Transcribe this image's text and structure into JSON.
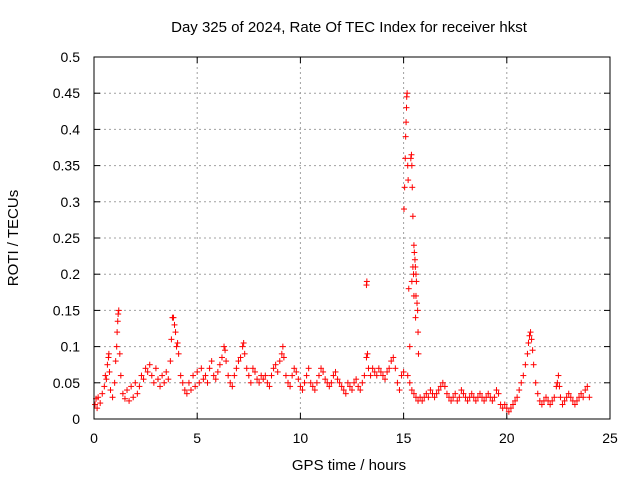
{
  "chart_data": {
    "type": "scatter",
    "title": "Day 325 of 2024, Rate Of TEC Index for receiver hkst",
    "xlabel": "GPS time / hours",
    "ylabel": "ROTI / TECUs",
    "xlim": [
      0,
      25
    ],
    "ylim": [
      0,
      0.5
    ],
    "x_ticks": [
      0,
      5,
      10,
      15,
      20,
      25
    ],
    "x_tick_labels": [
      "0",
      "5",
      "10",
      "15",
      "20",
      "25"
    ],
    "y_ticks": [
      0,
      0.05,
      0.1,
      0.15,
      0.2,
      0.25,
      0.3,
      0.35,
      0.4,
      0.45,
      0.5
    ],
    "y_tick_labels": [
      "0",
      "0.05",
      "0.1",
      "0.15",
      "0.2",
      "0.25",
      "0.3",
      "0.35",
      "0.4",
      "0.45",
      "0.5"
    ],
    "grid": true,
    "marker": "+",
    "color": "#ff0000",
    "series": [
      {
        "name": "ROTI",
        "points": [
          [
            0.05,
            0.02
          ],
          [
            0.1,
            0.028
          ],
          [
            0.15,
            0.015
          ],
          [
            0.2,
            0.03
          ],
          [
            0.3,
            0.022
          ],
          [
            0.4,
            0.035
          ],
          [
            0.5,
            0.045
          ],
          [
            0.55,
            0.06
          ],
          [
            0.6,
            0.055
          ],
          [
            0.65,
            0.075
          ],
          [
            0.7,
            0.085
          ],
          [
            0.72,
            0.09
          ],
          [
            0.75,
            0.065
          ],
          [
            0.8,
            0.04
          ],
          [
            0.9,
            0.03
          ],
          [
            1.0,
            0.05
          ],
          [
            1.05,
            0.08
          ],
          [
            1.1,
            0.1
          ],
          [
            1.12,
            0.12
          ],
          [
            1.15,
            0.135
          ],
          [
            1.17,
            0.145
          ],
          [
            1.2,
            0.15
          ],
          [
            1.25,
            0.09
          ],
          [
            1.3,
            0.06
          ],
          [
            1.4,
            0.035
          ],
          [
            1.5,
            0.028
          ],
          [
            1.6,
            0.04
          ],
          [
            1.7,
            0.025
          ],
          [
            1.8,
            0.045
          ],
          [
            1.9,
            0.03
          ],
          [
            2.0,
            0.05
          ],
          [
            2.1,
            0.035
          ],
          [
            2.2,
            0.045
          ],
          [
            2.3,
            0.06
          ],
          [
            2.4,
            0.055
          ],
          [
            2.5,
            0.07
          ],
          [
            2.6,
            0.065
          ],
          [
            2.7,
            0.075
          ],
          [
            2.8,
            0.06
          ],
          [
            2.9,
            0.05
          ],
          [
            3.0,
            0.07
          ],
          [
            3.1,
            0.055
          ],
          [
            3.2,
            0.045
          ],
          [
            3.3,
            0.06
          ],
          [
            3.4,
            0.05
          ],
          [
            3.5,
            0.065
          ],
          [
            3.6,
            0.055
          ],
          [
            3.7,
            0.08
          ],
          [
            3.75,
            0.11
          ],
          [
            3.8,
            0.14
          ],
          [
            3.85,
            0.14
          ],
          [
            3.9,
            0.13
          ],
          [
            3.95,
            0.12
          ],
          [
            4.0,
            0.1
          ],
          [
            4.05,
            0.105
          ],
          [
            4.1,
            0.09
          ],
          [
            4.2,
            0.06
          ],
          [
            4.3,
            0.05
          ],
          [
            4.4,
            0.04
          ],
          [
            4.5,
            0.035
          ],
          [
            4.6,
            0.05
          ],
          [
            4.7,
            0.04
          ],
          [
            4.8,
            0.06
          ],
          [
            4.9,
            0.045
          ],
          [
            5.0,
            0.065
          ],
          [
            5.1,
            0.05
          ],
          [
            5.2,
            0.07
          ],
          [
            5.3,
            0.055
          ],
          [
            5.4,
            0.06
          ],
          [
            5.5,
            0.05
          ],
          [
            5.6,
            0.07
          ],
          [
            5.7,
            0.08
          ],
          [
            5.8,
            0.06
          ],
          [
            5.9,
            0.055
          ],
          [
            6.0,
            0.065
          ],
          [
            6.1,
            0.075
          ],
          [
            6.2,
            0.085
          ],
          [
            6.3,
            0.1
          ],
          [
            6.35,
            0.095
          ],
          [
            6.4,
            0.08
          ],
          [
            6.5,
            0.06
          ],
          [
            6.6,
            0.05
          ],
          [
            6.7,
            0.045
          ],
          [
            6.8,
            0.06
          ],
          [
            6.9,
            0.07
          ],
          [
            7.0,
            0.08
          ],
          [
            7.1,
            0.085
          ],
          [
            7.2,
            0.1
          ],
          [
            7.25,
            0.105
          ],
          [
            7.3,
            0.09
          ],
          [
            7.4,
            0.07
          ],
          [
            7.5,
            0.06
          ],
          [
            7.6,
            0.05
          ],
          [
            7.7,
            0.07
          ],
          [
            7.8,
            0.065
          ],
          [
            7.9,
            0.055
          ],
          [
            8.0,
            0.05
          ],
          [
            8.1,
            0.06
          ],
          [
            8.2,
            0.055
          ],
          [
            8.3,
            0.06
          ],
          [
            8.4,
            0.05
          ],
          [
            8.5,
            0.045
          ],
          [
            8.6,
            0.06
          ],
          [
            8.7,
            0.07
          ],
          [
            8.8,
            0.075
          ],
          [
            8.9,
            0.065
          ],
          [
            9.0,
            0.08
          ],
          [
            9.1,
            0.09
          ],
          [
            9.15,
            0.1
          ],
          [
            9.2,
            0.085
          ],
          [
            9.3,
            0.06
          ],
          [
            9.4,
            0.05
          ],
          [
            9.5,
            0.045
          ],
          [
            9.6,
            0.06
          ],
          [
            9.7,
            0.07
          ],
          [
            9.8,
            0.065
          ],
          [
            9.9,
            0.055
          ],
          [
            10.0,
            0.045
          ],
          [
            10.1,
            0.04
          ],
          [
            10.2,
            0.05
          ],
          [
            10.3,
            0.06
          ],
          [
            10.4,
            0.07
          ],
          [
            10.5,
            0.05
          ],
          [
            10.6,
            0.045
          ],
          [
            10.7,
            0.04
          ],
          [
            10.8,
            0.05
          ],
          [
            10.9,
            0.06
          ],
          [
            11.0,
            0.07
          ],
          [
            11.1,
            0.065
          ],
          [
            11.2,
            0.055
          ],
          [
            11.3,
            0.05
          ],
          [
            11.4,
            0.045
          ],
          [
            11.5,
            0.05
          ],
          [
            11.6,
            0.06
          ],
          [
            11.7,
            0.065
          ],
          [
            11.8,
            0.055
          ],
          [
            11.9,
            0.05
          ],
          [
            12.0,
            0.045
          ],
          [
            12.1,
            0.04
          ],
          [
            12.2,
            0.035
          ],
          [
            12.3,
            0.05
          ],
          [
            12.4,
            0.045
          ],
          [
            12.5,
            0.04
          ],
          [
            12.6,
            0.05
          ],
          [
            12.7,
            0.055
          ],
          [
            12.8,
            0.045
          ],
          [
            12.9,
            0.04
          ],
          [
            13.0,
            0.05
          ],
          [
            13.1,
            0.06
          ],
          [
            13.2,
            0.085
          ],
          [
            13.25,
            0.09
          ],
          [
            13.3,
            0.07
          ],
          [
            13.4,
            0.06
          ],
          [
            13.5,
            0.07
          ],
          [
            13.6,
            0.065
          ],
          [
            13.7,
            0.06
          ],
          [
            13.8,
            0.07
          ],
          [
            13.9,
            0.065
          ],
          [
            14.0,
            0.06
          ],
          [
            14.1,
            0.055
          ],
          [
            14.2,
            0.065
          ],
          [
            14.3,
            0.07
          ],
          [
            14.4,
            0.08
          ],
          [
            14.5,
            0.085
          ],
          [
            14.6,
            0.07
          ],
          [
            14.7,
            0.05
          ],
          [
            14.8,
            0.04
          ],
          [
            14.9,
            0.06
          ],
          [
            15.0,
            0.065
          ],
          [
            13.2,
            0.185
          ],
          [
            13.22,
            0.19
          ],
          [
            15.02,
            0.29
          ],
          [
            15.05,
            0.32
          ],
          [
            15.08,
            0.36
          ],
          [
            15.1,
            0.39
          ],
          [
            15.12,
            0.41
          ],
          [
            15.14,
            0.43
          ],
          [
            15.15,
            0.445
          ],
          [
            15.17,
            0.45
          ],
          [
            15.2,
            0.35
          ],
          [
            15.22,
            0.33
          ],
          [
            15.25,
            0.18
          ],
          [
            15.3,
            0.1
          ],
          [
            15.35,
            0.36
          ],
          [
            15.38,
            0.365
          ],
          [
            15.4,
            0.35
          ],
          [
            15.42,
            0.32
          ],
          [
            15.45,
            0.28
          ],
          [
            15.5,
            0.24
          ],
          [
            15.52,
            0.23
          ],
          [
            15.55,
            0.22
          ],
          [
            15.57,
            0.21
          ],
          [
            15.6,
            0.2
          ],
          [
            15.62,
            0.19
          ],
          [
            15.65,
            0.16
          ],
          [
            15.68,
            0.15
          ],
          [
            15.7,
            0.12
          ],
          [
            15.72,
            0.09
          ],
          [
            15.45,
            0.21
          ],
          [
            15.48,
            0.2
          ],
          [
            15.5,
            0.17
          ],
          [
            15.4,
            0.19
          ],
          [
            15.6,
            0.17
          ],
          [
            15.58,
            0.14
          ],
          [
            15.2,
            0.06
          ],
          [
            15.3,
            0.05
          ],
          [
            15.4,
            0.04
          ],
          [
            15.5,
            0.035
          ],
          [
            15.6,
            0.03
          ],
          [
            15.7,
            0.025
          ],
          [
            15.8,
            0.03
          ],
          [
            15.9,
            0.025
          ],
          [
            16.0,
            0.03
          ],
          [
            16.1,
            0.035
          ],
          [
            16.2,
            0.03
          ],
          [
            16.3,
            0.04
          ],
          [
            16.4,
            0.035
          ],
          [
            16.5,
            0.03
          ],
          [
            16.6,
            0.035
          ],
          [
            16.7,
            0.04
          ],
          [
            16.8,
            0.045
          ],
          [
            16.9,
            0.05
          ],
          [
            17.0,
            0.045
          ],
          [
            17.1,
            0.035
          ],
          [
            17.2,
            0.03
          ],
          [
            17.3,
            0.025
          ],
          [
            17.4,
            0.03
          ],
          [
            17.5,
            0.035
          ],
          [
            17.6,
            0.025
          ],
          [
            17.7,
            0.03
          ],
          [
            17.8,
            0.04
          ],
          [
            17.9,
            0.035
          ],
          [
            18.0,
            0.03
          ],
          [
            18.1,
            0.025
          ],
          [
            18.2,
            0.03
          ],
          [
            18.3,
            0.035
          ],
          [
            18.4,
            0.03
          ],
          [
            18.5,
            0.025
          ],
          [
            18.6,
            0.03
          ],
          [
            18.7,
            0.035
          ],
          [
            18.8,
            0.03
          ],
          [
            18.9,
            0.025
          ],
          [
            19.0,
            0.03
          ],
          [
            19.1,
            0.035
          ],
          [
            19.2,
            0.03
          ],
          [
            19.3,
            0.025
          ],
          [
            19.4,
            0.03
          ],
          [
            19.5,
            0.04
          ],
          [
            19.6,
            0.035
          ],
          [
            19.7,
            0.02
          ],
          [
            19.8,
            0.015
          ],
          [
            19.9,
            0.02
          ],
          [
            20.0,
            0.015
          ],
          [
            20.1,
            0.01
          ],
          [
            20.2,
            0.015
          ],
          [
            20.3,
            0.02
          ],
          [
            20.4,
            0.025
          ],
          [
            20.5,
            0.03
          ],
          [
            20.6,
            0.04
          ],
          [
            20.7,
            0.05
          ],
          [
            20.8,
            0.06
          ],
          [
            20.9,
            0.075
          ],
          [
            21.0,
            0.09
          ],
          [
            21.05,
            0.105
          ],
          [
            21.1,
            0.115
          ],
          [
            21.15,
            0.12
          ],
          [
            21.2,
            0.11
          ],
          [
            21.25,
            0.095
          ],
          [
            21.3,
            0.075
          ],
          [
            21.4,
            0.05
          ],
          [
            21.5,
            0.035
          ],
          [
            21.6,
            0.025
          ],
          [
            21.7,
            0.02
          ],
          [
            21.8,
            0.025
          ],
          [
            21.9,
            0.03
          ],
          [
            22.0,
            0.025
          ],
          [
            22.1,
            0.02
          ],
          [
            22.2,
            0.025
          ],
          [
            22.3,
            0.03
          ],
          [
            22.4,
            0.045
          ],
          [
            22.45,
            0.05
          ],
          [
            22.5,
            0.06
          ],
          [
            22.55,
            0.045
          ],
          [
            22.6,
            0.03
          ],
          [
            22.7,
            0.02
          ],
          [
            22.8,
            0.025
          ],
          [
            22.9,
            0.03
          ],
          [
            23.0,
            0.035
          ],
          [
            23.1,
            0.03
          ],
          [
            23.2,
            0.025
          ],
          [
            23.3,
            0.02
          ],
          [
            23.4,
            0.025
          ],
          [
            23.5,
            0.03
          ],
          [
            23.6,
            0.035
          ],
          [
            23.7,
            0.03
          ],
          [
            23.8,
            0.04
          ],
          [
            23.9,
            0.045
          ],
          [
            24.0,
            0.03
          ]
        ]
      }
    ]
  }
}
